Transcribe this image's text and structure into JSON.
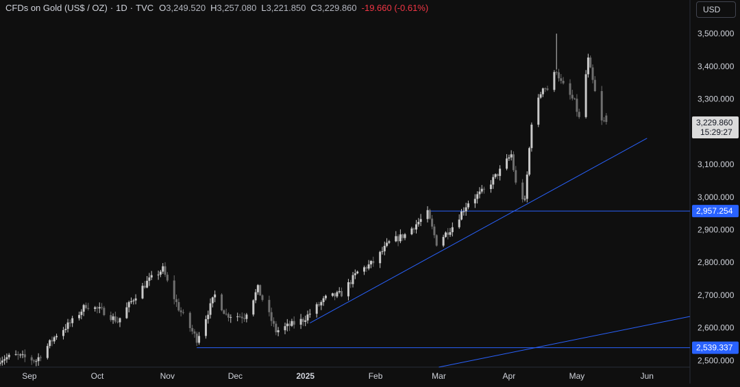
{
  "header": {
    "symbol": "CFDs on Gold (US$ / OZ)",
    "separator": "·",
    "interval": "1D",
    "source": "TVC",
    "open_label": "O",
    "open": "3,249.520",
    "high_label": "H",
    "high": "3,257.080",
    "low_label": "L",
    "low": "3,221.850",
    "close_label": "C",
    "close": "3,229.860",
    "change": "-19.660 (-0.61%)"
  },
  "currency_button": "USD",
  "colors": {
    "background": "#0f0f0f",
    "candle_up": "#c9c9c9",
    "candle_down": "#6f6f6f",
    "line": "#2962ff",
    "badge_blue": "#2962ff",
    "badge_price": "#dbdbdb",
    "text": "#d1d4dc"
  },
  "chart_data": {
    "type": "candlestick",
    "y_axis": {
      "ticks": [
        2500,
        2600,
        2700,
        2800,
        2900,
        3000,
        3100,
        3200,
        3300,
        3400,
        3500
      ],
      "tick_labels": [
        "2,500.000",
        "2,600.000",
        "2,700.000",
        "2,800.000",
        "2,900.000",
        "3,000.000",
        "3,100.000",
        "3,200.000",
        "3,300.000",
        "3,400.000",
        "3,500.000"
      ],
      "range": [
        2480,
        3540
      ]
    },
    "x_axis": {
      "range": [
        "2024-08-19",
        "2025-06-20"
      ],
      "ticks": [
        {
          "date": "2024-09-01",
          "label": "Sep"
        },
        {
          "date": "2024-10-01",
          "label": "Oct"
        },
        {
          "date": "2024-11-01",
          "label": "Nov"
        },
        {
          "date": "2024-12-01",
          "label": "Dec"
        },
        {
          "date": "2025-01-01",
          "label": "2025"
        },
        {
          "date": "2025-02-01",
          "label": "Feb"
        },
        {
          "date": "2025-03-01",
          "label": "Mar"
        },
        {
          "date": "2025-04-01",
          "label": "Apr"
        },
        {
          "date": "2025-05-01",
          "label": "May"
        },
        {
          "date": "2025-06-01",
          "label": "Jun"
        }
      ]
    },
    "close_anchors": [
      [
        "2024-08-19",
        2505
      ],
      [
        "2024-08-26",
        2515
      ],
      [
        "2024-09-04",
        2500
      ],
      [
        "2024-09-13",
        2580
      ],
      [
        "2024-09-20",
        2620
      ],
      [
        "2024-09-26",
        2670
      ],
      [
        "2024-10-04",
        2650
      ],
      [
        "2024-10-10",
        2620
      ],
      [
        "2024-10-18",
        2700
      ],
      [
        "2024-10-23",
        2740
      ],
      [
        "2024-10-30",
        2780
      ],
      [
        "2024-11-01",
        2740
      ],
      [
        "2024-11-06",
        2660
      ],
      [
        "2024-11-14",
        2565
      ],
      [
        "2024-11-22",
        2700
      ],
      [
        "2024-11-27",
        2640
      ],
      [
        "2024-12-05",
        2635
      ],
      [
        "2024-12-11",
        2720
      ],
      [
        "2024-12-19",
        2590
      ],
      [
        "2024-12-31",
        2625
      ],
      [
        "2025-01-10",
        2690
      ],
      [
        "2025-01-17",
        2705
      ],
      [
        "2025-01-24",
        2770
      ],
      [
        "2025-01-31",
        2800
      ],
      [
        "2025-02-07",
        2860
      ],
      [
        "2025-02-14",
        2885
      ],
      [
        "2025-02-24",
        2950
      ],
      [
        "2025-02-28",
        2860
      ],
      [
        "2025-03-07",
        2910
      ],
      [
        "2025-03-14",
        2985
      ],
      [
        "2025-03-21",
        3020
      ],
      [
        "2025-03-28",
        3080
      ],
      [
        "2025-04-02",
        3130
      ],
      [
        "2025-04-04",
        3040
      ],
      [
        "2025-04-08",
        2985
      ],
      [
        "2025-04-11",
        3230
      ],
      [
        "2025-04-16",
        3340
      ],
      [
        "2025-04-18",
        3330
      ],
      [
        "2025-04-22",
        3390
      ],
      [
        "2025-04-24",
        3350
      ],
      [
        "2025-04-30",
        3290
      ],
      [
        "2025-05-02",
        3240
      ],
      [
        "2025-05-06",
        3420
      ],
      [
        "2025-05-09",
        3320
      ],
      [
        "2025-05-12",
        3230
      ],
      [
        "2025-05-14",
        3229.86
      ]
    ],
    "trendlines": [
      {
        "from": [
          "2025-01-03",
          2615
        ],
        "to": [
          "2025-06-01",
          3180
        ]
      },
      {
        "from": [
          "2025-03-01",
          2480
        ],
        "to": [
          "2025-06-20",
          2635
        ]
      }
    ],
    "horizontal_lines": [
      {
        "from": "2025-02-24",
        "value": 2957.254,
        "label": "2,957.254"
      },
      {
        "from": "2024-11-14",
        "value": 2539.337,
        "label": "2,539.337"
      }
    ],
    "last_price": {
      "value": 3229.86,
      "label": "3,229.860",
      "countdown": "15:29:27"
    }
  }
}
